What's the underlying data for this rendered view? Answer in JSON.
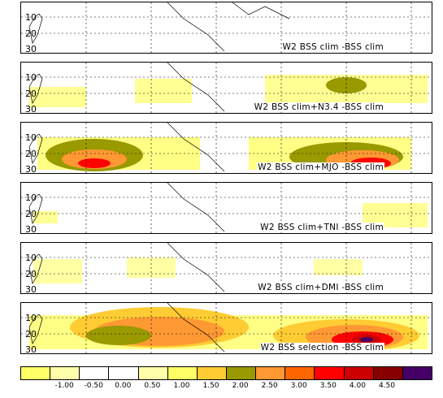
{
  "lat_labels": [
    "10",
    "20",
    "30"
  ],
  "panels": [
    {
      "title": "W2 BSS clim -BSS clim"
    },
    {
      "title": "W2 BSS clim+N3.4 -BSS clim"
    },
    {
      "title": "W2 BSS clim+MJO -BSS clim"
    },
    {
      "title": "W2 BSS clim+TNI -BSS clim"
    },
    {
      "title": "W2 BSS clim+DMI -BSS clim"
    },
    {
      "title": "W2 BSS selection -BSS clim"
    }
  ],
  "colorbar": {
    "labels": [
      "-1.00",
      "-0.50",
      "0.00",
      "0.50",
      "1.00",
      "1.50",
      "2.00",
      "2.50",
      "3.00",
      "3.50",
      "4.00",
      "4.50"
    ],
    "colors": [
      "#ffff66",
      "#ffffaa",
      "#ffffff",
      "#ffffff",
      "#ffffaa",
      "#ffff66",
      "#ffcc33",
      "#999900",
      "#ff9933",
      "#ff6600",
      "#ff0000",
      "#cc0000",
      "#880000",
      "#440066"
    ]
  }
}
